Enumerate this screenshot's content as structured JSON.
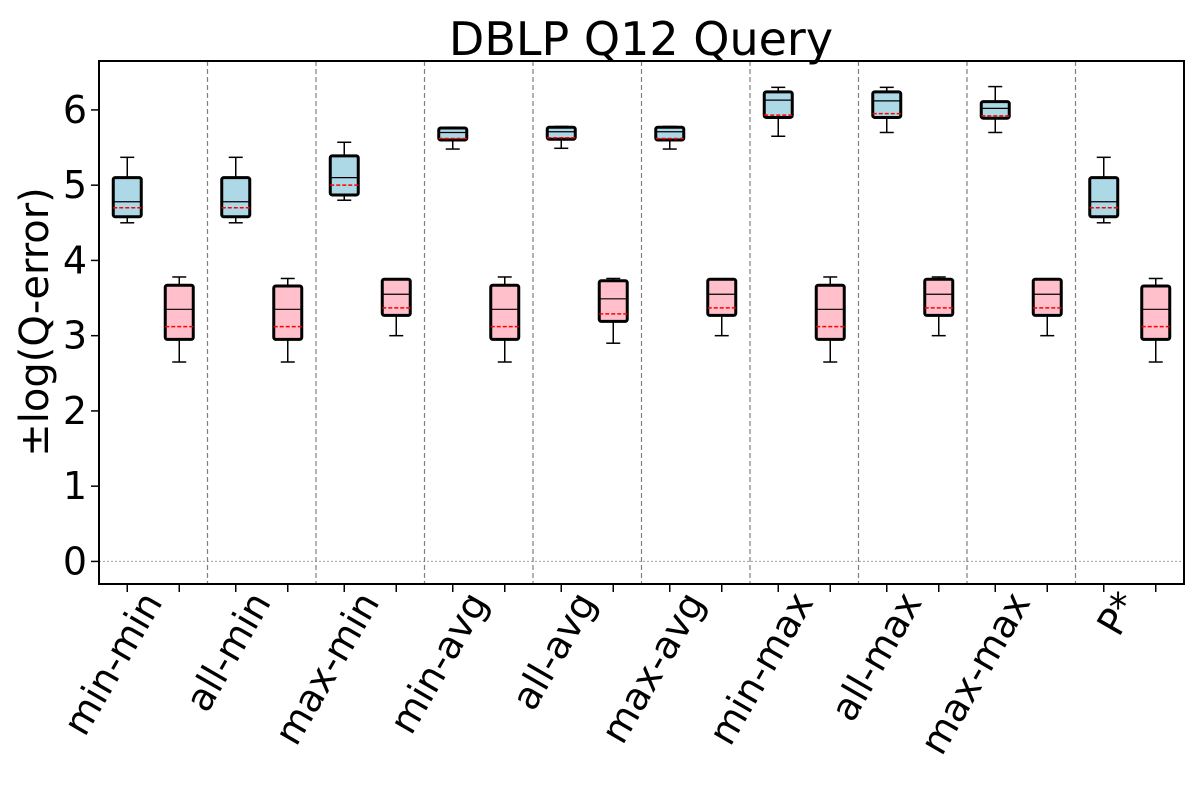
{
  "chart_data": {
    "type": "box",
    "title": "DBLP Q12 Query",
    "xlabel": "",
    "ylabel": "±log(Q-error)",
    "ylim": [
      -0.3,
      6.65
    ],
    "yticks": [
      0,
      1,
      2,
      3,
      4,
      5,
      6
    ],
    "grid": false,
    "categories": [
      "min-min",
      "all-min",
      "max-min",
      "min-avg",
      "all-avg",
      "max-avg",
      "min-max",
      "all-max",
      "max-max",
      "P*"
    ],
    "colors": {
      "series1": "#add8e6",
      "series2": "#ffc0cb",
      "median": "#000000",
      "mean": "#ff0000",
      "separator": "#808080",
      "zero_line": "#a0a0a0"
    },
    "series": [
      {
        "color": "#add8e6",
        "boxes": [
          {
            "whislo": 4.5,
            "q1": 4.58,
            "med": 4.78,
            "mean": 4.7,
            "q3": 5.1,
            "whishi": 5.37
          },
          {
            "whislo": 4.5,
            "q1": 4.58,
            "med": 4.78,
            "mean": 4.7,
            "q3": 5.1,
            "whishi": 5.37
          },
          {
            "whislo": 4.8,
            "q1": 4.87,
            "med": 5.1,
            "mean": 5.0,
            "q3": 5.39,
            "whishi": 5.57
          },
          {
            "whislo": 5.48,
            "q1": 5.6,
            "med": 5.7,
            "mean": 5.62,
            "q3": 5.76,
            "whishi": 5.77
          },
          {
            "whislo": 5.49,
            "q1": 5.61,
            "med": 5.71,
            "mean": 5.63,
            "q3": 5.77,
            "whishi": 5.78
          },
          {
            "whislo": 5.48,
            "q1": 5.6,
            "med": 5.71,
            "mean": 5.62,
            "q3": 5.77,
            "whishi": 5.78
          },
          {
            "whislo": 5.65,
            "q1": 5.9,
            "med": 6.13,
            "mean": 5.93,
            "q3": 6.24,
            "whishi": 6.3
          },
          {
            "whislo": 5.7,
            "q1": 5.9,
            "med": 6.12,
            "mean": 5.95,
            "q3": 6.24,
            "whishi": 6.3
          },
          {
            "whislo": 5.7,
            "q1": 5.89,
            "med": 6.02,
            "mean": 5.92,
            "q3": 6.11,
            "whishi": 6.31
          },
          {
            "whislo": 4.5,
            "q1": 4.58,
            "med": 4.78,
            "mean": 4.7,
            "q3": 5.1,
            "whishi": 5.37
          }
        ]
      },
      {
        "color": "#ffc0cb",
        "boxes": [
          {
            "whislo": 2.65,
            "q1": 2.95,
            "med": 3.35,
            "mean": 3.12,
            "q3": 3.67,
            "whishi": 3.78
          },
          {
            "whislo": 2.65,
            "q1": 2.95,
            "med": 3.35,
            "mean": 3.12,
            "q3": 3.66,
            "whishi": 3.76
          },
          {
            "whislo": 3.0,
            "q1": 3.27,
            "med": 3.55,
            "mean": 3.37,
            "q3": 3.75,
            "whishi": 3.75
          },
          {
            "whislo": 2.65,
            "q1": 2.95,
            "med": 3.35,
            "mean": 3.12,
            "q3": 3.67,
            "whishi": 3.78
          },
          {
            "whislo": 2.9,
            "q1": 3.19,
            "med": 3.49,
            "mean": 3.29,
            "q3": 3.73,
            "whishi": 3.76
          },
          {
            "whislo": 3.0,
            "q1": 3.27,
            "med": 3.55,
            "mean": 3.37,
            "q3": 3.75,
            "whishi": 3.75
          },
          {
            "whislo": 2.65,
            "q1": 2.95,
            "med": 3.35,
            "mean": 3.12,
            "q3": 3.67,
            "whishi": 3.78
          },
          {
            "whislo": 3.0,
            "q1": 3.27,
            "med": 3.55,
            "mean": 3.37,
            "q3": 3.75,
            "whishi": 3.78
          },
          {
            "whislo": 3.0,
            "q1": 3.27,
            "med": 3.55,
            "mean": 3.37,
            "q3": 3.75,
            "whishi": 3.75
          },
          {
            "whislo": 2.65,
            "q1": 2.95,
            "med": 3.35,
            "mean": 3.12,
            "q3": 3.66,
            "whishi": 3.76
          }
        ]
      }
    ]
  }
}
